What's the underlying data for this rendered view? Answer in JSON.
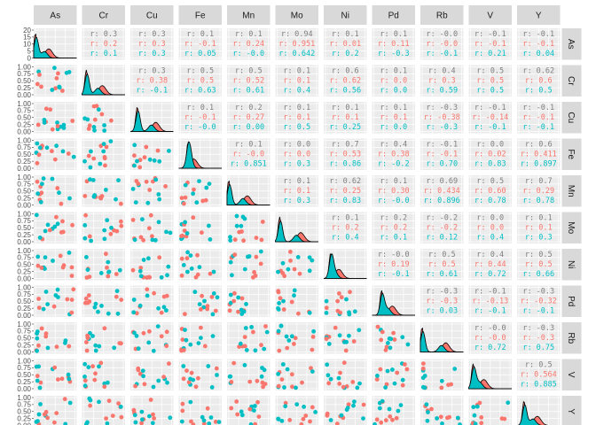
{
  "chart_data": {
    "type": "scatter-matrix",
    "variables": [
      "As",
      "Cr",
      "Cu",
      "Fe",
      "Mn",
      "Mo",
      "Ni",
      "Pd",
      "Rb",
      "V",
      "Y"
    ],
    "groups": [
      {
        "name": "",
        "color": "#F8766D"
      },
      {
        "name": "",
        "color": "#00BFC4"
      }
    ],
    "as_density_ticks": [
      "0",
      "5",
      "10",
      "15",
      "20"
    ],
    "y_ticks": [
      "0.00",
      "0.25",
      "0.50",
      "0.75",
      "1.00"
    ],
    "x_ticks": [
      "0.00",
      "0.25",
      "0.50",
      "0.75"
    ],
    "cell_text": {
      "0-1": [
        "r: 0.3",
        "r: 0.2",
        "r: 0.1"
      ],
      "0-2": [
        "r: 0.3",
        "r: 0.3",
        "r: 0.3"
      ],
      "0-3": [
        "r: 0.1",
        "r: -0.1",
        "r: 0.05"
      ],
      "0-4": [
        "r: 0.1",
        "r: 0.24",
        "r: -0.0"
      ],
      "0-5": [
        "r: 0.94",
        "r: 0.951",
        "r: 0.642"
      ],
      "0-6": [
        "r: 0.1",
        "r: 0.01",
        "r: 0.2"
      ],
      "0-7": [
        "r: 0.1",
        "r: 0.11",
        "r: -0.3"
      ],
      "0-8": [
        "r: -0.0",
        "r: -0.0",
        "r: -0.1"
      ],
      "0-9": [
        "r: -0.1",
        "r: -0.1",
        "r: 0.21"
      ],
      "0-10": [
        "r: -0.1",
        "r: -0.1",
        "r: 0.04"
      ],
      "1-2": [
        "r: 0.3",
        "r: 0.38",
        "r: -0.1"
      ],
      "1-3": [
        "r: 0.5",
        "r: 0.5",
        "r: 0.63"
      ],
      "1-4": [
        "r: 0.5",
        "r: 0.52",
        "r: 0.61"
      ],
      "1-5": [
        "r: 0.1",
        "r: 0.1",
        "r: 0.4"
      ],
      "1-6": [
        "r: 0.6",
        "r: 0.62",
        "r: 0.56"
      ],
      "1-7": [
        "r: 0.1",
        "r: 0.0",
        "r: 0.0"
      ],
      "1-8": [
        "r: 0.4",
        "r: 0.3",
        "r: 0.59"
      ],
      "1-9": [
        "r: 0.5",
        "r: 0.5",
        "r: 0.5"
      ],
      "1-10": [
        "r: 0.62",
        "r: 0.6",
        "r: 0.5"
      ],
      "2-3": [
        "r: 0.1",
        "r: -0.1",
        "r: -0.0"
      ],
      "2-4": [
        "r: 0.2",
        "r: 0.27",
        "r: 0.00"
      ],
      "2-5": [
        "r: 0.1",
        "r: 0.1",
        "r: 0.5"
      ],
      "2-6": [
        "r: 0.1",
        "r: 0.1",
        "r: 0.25"
      ],
      "2-7": [
        "r: 0.1",
        "r: 0.1",
        "r: 0.0"
      ],
      "2-8": [
        "r: -0.3",
        "r: -0.38",
        "r: -0.3"
      ],
      "2-9": [
        "r: -0.1",
        "r: -0.14",
        "r: -0.1"
      ],
      "2-10": [
        "r: -0.1",
        "r: -0.1",
        "r: -0.1"
      ],
      "3-4": [
        "r: 0.1",
        "r: -0.0",
        "r: 0.851"
      ],
      "3-5": [
        "r: 0.0",
        "r: 0.0",
        "r: 0.3"
      ],
      "3-6": [
        "r: 0.7",
        "r: 0.53",
        "r: 0.86"
      ],
      "3-7": [
        "r: 0.4",
        "r: 0.38",
        "r: -0.2"
      ],
      "3-8": [
        "r: -0.1",
        "r: -0.1",
        "r: 0.70"
      ],
      "3-9": [
        "r: 0.0",
        "r: 0.02",
        "r: 0.83"
      ],
      "3-10": [
        "r: 0.6",
        "r: 0.411",
        "r: 0.897"
      ],
      "4-5": [
        "r: 0.1",
        "r: 0.1",
        "r: 0.3"
      ],
      "4-6": [
        "r: 0.62",
        "r: 0.25",
        "r: 0.83"
      ],
      "4-7": [
        "r: 0.1",
        "r: 0.30",
        "r: -0.0"
      ],
      "4-8": [
        "r: 0.69",
        "r: 0.434",
        "r: 0.896"
      ],
      "4-9": [
        "r: 0.5",
        "r: 0.60",
        "r: 0.78"
      ],
      "4-10": [
        "r: 0.7",
        "r: 0.29",
        "r: 0.78"
      ],
      "5-6": [
        "r: 0.1",
        "r: 0.2",
        "r: 0.4"
      ],
      "5-7": [
        "r: 0.2",
        "r: 0.2",
        "r: 0.1"
      ],
      "5-8": [
        "r: -0.2",
        "r: -0.2",
        "r: 0.12"
      ],
      "5-9": [
        "r: 0.0",
        "r: 0.0",
        "r: 0.4"
      ],
      "5-10": [
        "r: 0.1",
        "r: 0.1",
        "r: 0.3"
      ],
      "6-7": [
        "r: -0.0",
        "r: 0.19",
        "r: -0.1"
      ],
      "6-8": [
        "r: 0.5",
        "r: 0.5",
        "r: 0.61"
      ],
      "6-9": [
        "r: 0.4",
        "r: 0.44",
        "r: 0.72"
      ],
      "6-10": [
        "r: 0.5",
        "r: 0.5",
        "r: 0.66"
      ],
      "7-8": [
        "r: -0.3",
        "r: -0.3",
        "r: 0.03"
      ],
      "7-9": [
        "r: -0.1",
        "r: -0.13",
        "r: -0.1"
      ],
      "7-10": [
        "r: -0.3",
        "r: -0.32",
        "r: -0.1"
      ],
      "8-9": [
        "r: -0.0",
        "r: -0.0",
        "r: 0.72"
      ],
      "8-10": [
        "r: -0.3",
        "r: -0.3",
        "r: 0.75"
      ],
      "9-10": [
        "r: 0.5",
        "r: 0.564",
        "r: 0.885"
      ]
    }
  }
}
